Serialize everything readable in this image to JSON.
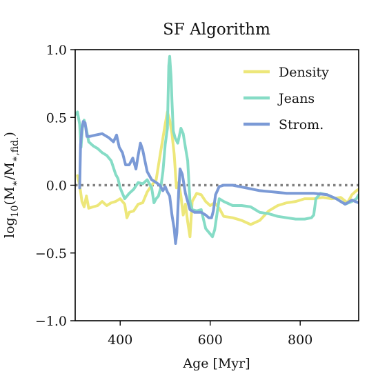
{
  "chart_data": {
    "type": "line",
    "title": "SF Algorithm",
    "xlabel": "Age [Myr]",
    "ylabel": "log10(M*/M*,fid.)",
    "xlim": [
      300,
      930
    ],
    "ylim": [
      -1.0,
      1.0
    ],
    "xticks": [
      400,
      600,
      800
    ],
    "xtick_labels": [
      "400",
      "600",
      "800"
    ],
    "yticks": [
      -1.0,
      -0.5,
      0.0,
      0.5,
      1.0
    ],
    "ytick_labels": [
      "−1.0",
      "−0.5",
      "0.0",
      "0.5",
      "1.0"
    ],
    "grid": false,
    "legend_position": "top-right",
    "reference_line": {
      "y": 0.0,
      "style": "dotted",
      "color": "#808080"
    },
    "series": [
      {
        "name": "Density",
        "color": "#EDE77A",
        "points": [
          [
            305,
            0.07
          ],
          [
            310,
            0.0
          ],
          [
            315,
            -0.12
          ],
          [
            320,
            -0.16
          ],
          [
            325,
            -0.08
          ],
          [
            330,
            -0.17
          ],
          [
            340,
            -0.16
          ],
          [
            350,
            -0.15
          ],
          [
            360,
            -0.12
          ],
          [
            370,
            -0.15
          ],
          [
            380,
            -0.13
          ],
          [
            390,
            -0.12
          ],
          [
            400,
            -0.1
          ],
          [
            410,
            -0.14
          ],
          [
            415,
            -0.24
          ],
          [
            420,
            -0.2
          ],
          [
            430,
            -0.19
          ],
          [
            440,
            -0.14
          ],
          [
            450,
            -0.13
          ],
          [
            460,
            -0.05
          ],
          [
            470,
            0.0
          ],
          [
            480,
            0.04
          ],
          [
            490,
            0.25
          ],
          [
            500,
            0.45
          ],
          [
            505,
            0.54
          ],
          [
            510,
            0.48
          ],
          [
            515,
            0.38
          ],
          [
            520,
            0.23
          ],
          [
            525,
            -0.02
          ],
          [
            530,
            0.02
          ],
          [
            535,
            -0.08
          ],
          [
            540,
            -0.22
          ],
          [
            545,
            -0.14
          ],
          [
            550,
            -0.27
          ],
          [
            555,
            -0.38
          ],
          [
            560,
            -0.12
          ],
          [
            570,
            -0.06
          ],
          [
            580,
            -0.07
          ],
          [
            590,
            -0.12
          ],
          [
            600,
            -0.15
          ],
          [
            610,
            -0.13
          ],
          [
            620,
            -0.17
          ],
          [
            630,
            -0.23
          ],
          [
            650,
            -0.24
          ],
          [
            670,
            -0.26
          ],
          [
            690,
            -0.29
          ],
          [
            710,
            -0.26
          ],
          [
            730,
            -0.19
          ],
          [
            750,
            -0.15
          ],
          [
            770,
            -0.13
          ],
          [
            790,
            -0.12
          ],
          [
            810,
            -0.1
          ],
          [
            830,
            -0.1
          ],
          [
            850,
            -0.09
          ],
          [
            870,
            -0.1
          ],
          [
            890,
            -0.09
          ],
          [
            905,
            -0.13
          ],
          [
            915,
            -0.07
          ],
          [
            925,
            -0.04
          ],
          [
            930,
            -0.03
          ]
        ]
      },
      {
        "name": "Jeans",
        "color": "#86DCC6",
        "points": [
          [
            300,
            0.52
          ],
          [
            305,
            0.54
          ],
          [
            310,
            0.45
          ],
          [
            313,
            0.28
          ],
          [
            316,
            0.42
          ],
          [
            320,
            0.48
          ],
          [
            325,
            0.41
          ],
          [
            330,
            0.32
          ],
          [
            340,
            0.29
          ],
          [
            350,
            0.27
          ],
          [
            360,
            0.24
          ],
          [
            370,
            0.22
          ],
          [
            380,
            0.18
          ],
          [
            390,
            0.08
          ],
          [
            395,
            0.05
          ],
          [
            400,
            -0.02
          ],
          [
            405,
            -0.06
          ],
          [
            410,
            -0.1
          ],
          [
            420,
            -0.06
          ],
          [
            430,
            -0.03
          ],
          [
            440,
            0.02
          ],
          [
            450,
            0.01
          ],
          [
            460,
            0.04
          ],
          [
            470,
            -0.02
          ],
          [
            475,
            -0.13
          ],
          [
            480,
            -0.1
          ],
          [
            485,
            -0.08
          ],
          [
            490,
            -0.02
          ],
          [
            495,
            0.1
          ],
          [
            500,
            0.3
          ],
          [
            505,
            0.42
          ],
          [
            508,
            0.88
          ],
          [
            510,
            0.95
          ],
          [
            513,
            0.8
          ],
          [
            515,
            0.62
          ],
          [
            518,
            0.4
          ],
          [
            522,
            0.35
          ],
          [
            528,
            0.31
          ],
          [
            535,
            0.42
          ],
          [
            540,
            0.38
          ],
          [
            545,
            0.28
          ],
          [
            550,
            0.18
          ],
          [
            555,
            -0.12
          ],
          [
            560,
            -0.18
          ],
          [
            570,
            -0.19
          ],
          [
            580,
            -0.18
          ],
          [
            590,
            -0.32
          ],
          [
            600,
            -0.36
          ],
          [
            605,
            -0.38
          ],
          [
            610,
            -0.33
          ],
          [
            620,
            -0.1
          ],
          [
            630,
            -0.12
          ],
          [
            650,
            -0.15
          ],
          [
            670,
            -0.15
          ],
          [
            690,
            -0.16
          ],
          [
            710,
            -0.2
          ],
          [
            730,
            -0.21
          ],
          [
            750,
            -0.23
          ],
          [
            770,
            -0.24
          ],
          [
            790,
            -0.25
          ],
          [
            810,
            -0.25
          ],
          [
            825,
            -0.24
          ],
          [
            830,
            -0.22
          ],
          [
            835,
            -0.1
          ],
          [
            845,
            -0.06
          ],
          [
            860,
            -0.07
          ],
          [
            880,
            -0.1
          ],
          [
            900,
            -0.14
          ],
          [
            915,
            -0.12
          ],
          [
            925,
            -0.1
          ],
          [
            930,
            -0.07
          ]
        ]
      },
      {
        "name": "Strom.",
        "color": "#7B9AD6",
        "points": [
          [
            310,
            -0.02
          ],
          [
            312,
            0.3
          ],
          [
            315,
            0.42
          ],
          [
            318,
            0.47
          ],
          [
            322,
            0.46
          ],
          [
            326,
            0.36
          ],
          [
            332,
            0.36
          ],
          [
            345,
            0.37
          ],
          [
            360,
            0.38
          ],
          [
            375,
            0.35
          ],
          [
            385,
            0.32
          ],
          [
            392,
            0.37
          ],
          [
            398,
            0.28
          ],
          [
            405,
            0.24
          ],
          [
            412,
            0.15
          ],
          [
            420,
            0.15
          ],
          [
            428,
            0.2
          ],
          [
            435,
            0.12
          ],
          [
            440,
            0.22
          ],
          [
            445,
            0.31
          ],
          [
            450,
            0.26
          ],
          [
            455,
            0.18
          ],
          [
            460,
            0.1
          ],
          [
            470,
            0.04
          ],
          [
            480,
            0.02
          ],
          [
            488,
            0.0
          ],
          [
            495,
            -0.04
          ],
          [
            500,
            -0.01
          ],
          [
            505,
            -0.05
          ],
          [
            510,
            -0.08
          ],
          [
            515,
            -0.22
          ],
          [
            520,
            -0.32
          ],
          [
            523,
            -0.43
          ],
          [
            526,
            -0.35
          ],
          [
            530,
            -0.05
          ],
          [
            533,
            0.12
          ],
          [
            538,
            0.08
          ],
          [
            545,
            -0.06
          ],
          [
            555,
            -0.18
          ],
          [
            565,
            -0.2
          ],
          [
            580,
            -0.2
          ],
          [
            590,
            -0.22
          ],
          [
            597,
            -0.24
          ],
          [
            603,
            -0.24
          ],
          [
            607,
            -0.19
          ],
          [
            612,
            -0.07
          ],
          [
            620,
            -0.01
          ],
          [
            630,
            0.0
          ],
          [
            650,
            0.0
          ],
          [
            680,
            -0.02
          ],
          [
            710,
            -0.04
          ],
          [
            740,
            -0.05
          ],
          [
            770,
            -0.06
          ],
          [
            800,
            -0.06
          ],
          [
            830,
            -0.06
          ],
          [
            860,
            -0.07
          ],
          [
            880,
            -0.1
          ],
          [
            900,
            -0.14
          ],
          [
            915,
            -0.11
          ],
          [
            930,
            -0.13
          ]
        ]
      }
    ]
  }
}
